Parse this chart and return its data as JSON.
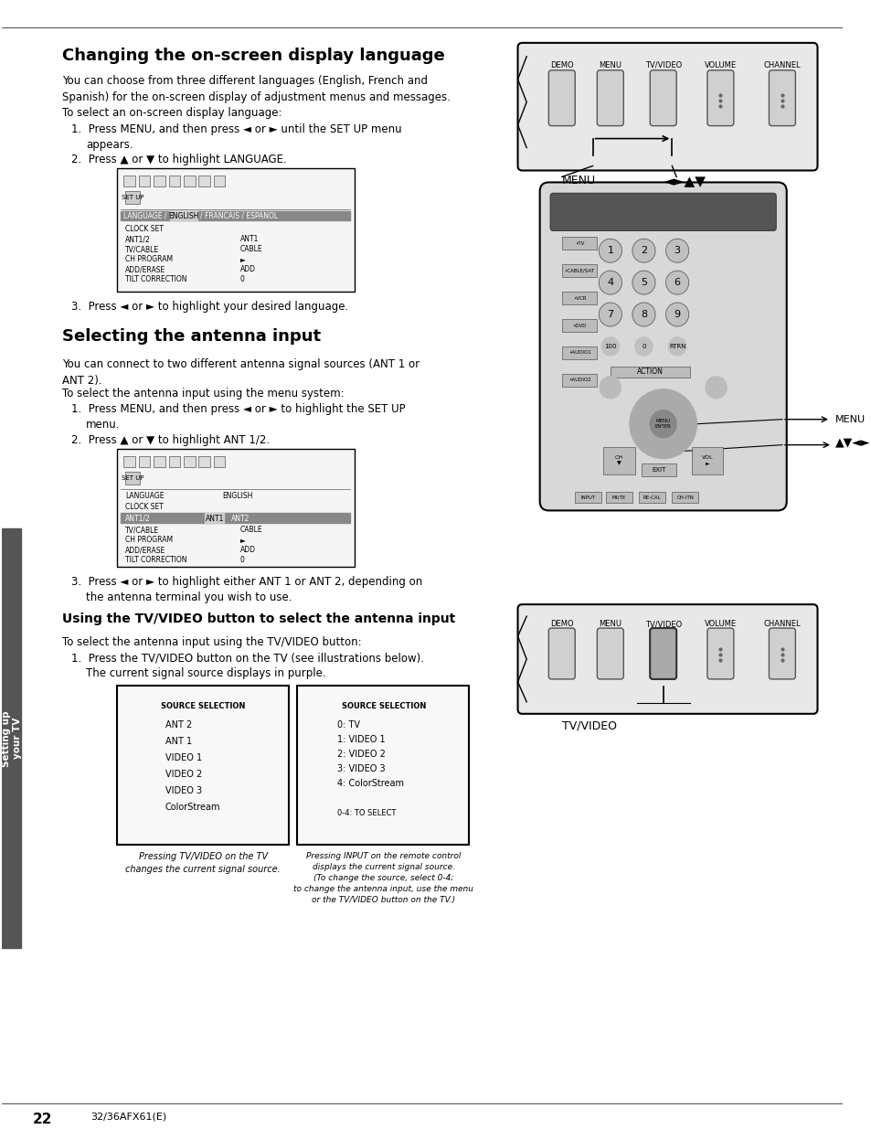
{
  "bg_color": "#ffffff",
  "title1": "Changing the on-screen display language",
  "title2": "Selecting the antenna input",
  "title3": "Using the TV/VIDEO button to select the antenna input",
  "sidebar_text": "Setting up\nyour TV",
  "page_number": "22",
  "page_footer": "32/36AFX61(E)"
}
